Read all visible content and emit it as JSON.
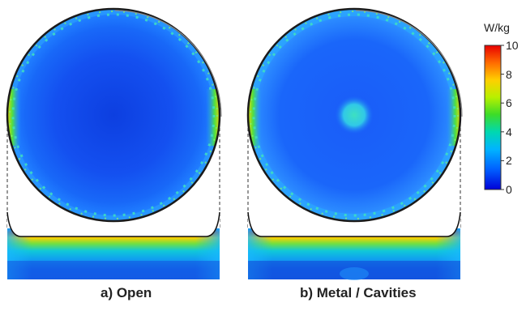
{
  "panels": [
    {
      "id": "a",
      "caption": "a) Open",
      "hotspot": false
    },
    {
      "id": "b",
      "caption": "b) Metal / Cavities",
      "hotspot": true
    }
  ],
  "colorbar": {
    "unit": "W/kg",
    "min": 0,
    "max": 10,
    "ticks": [
      "10",
      "8",
      "6",
      "4",
      "2",
      "0"
    ],
    "colors": [
      "#ff0000",
      "#ff8a00",
      "#ffd400",
      "#c8ff00",
      "#3cf000",
      "#00e0a0",
      "#00b8ff",
      "#0055ff",
      "#0000e0"
    ]
  }
}
